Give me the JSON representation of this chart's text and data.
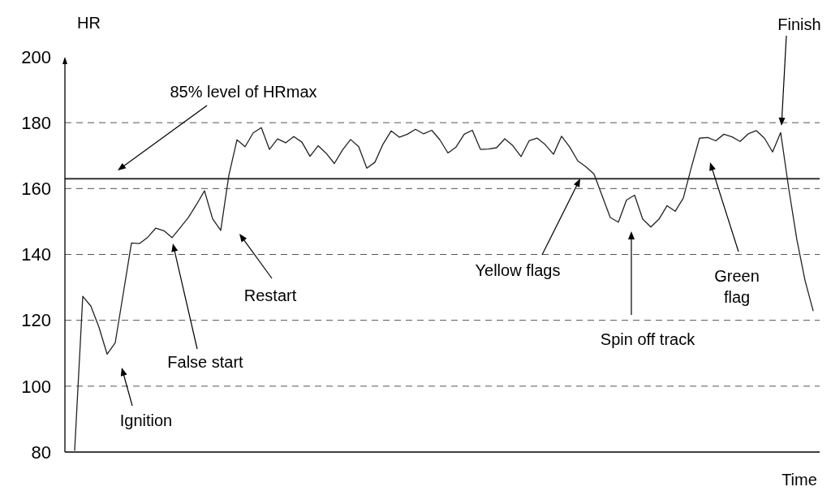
{
  "chart_data": {
    "type": "line",
    "ylabel": "HR",
    "xlabel": "Time",
    "categories": [
      null,
      null,
      null,
      null,
      null,
      null,
      null,
      null,
      null,
      null,
      null,
      null,
      null,
      null,
      null,
      null,
      null,
      null,
      null,
      null,
      null,
      null,
      null,
      null,
      null,
      null,
      null,
      null,
      null,
      null,
      null,
      null,
      null,
      null,
      null,
      null,
      null,
      null,
      null,
      null,
      null,
      null,
      null,
      null,
      null,
      null,
      null,
      null,
      null,
      null,
      null,
      null,
      null,
      null,
      null,
      null,
      null,
      null,
      null,
      null,
      null,
      null,
      null,
      null,
      null,
      null,
      null,
      null,
      null,
      null,
      null,
      null,
      null,
      null,
      null,
      null,
      null,
      null,
      null,
      null,
      null,
      null,
      null,
      null,
      null,
      null,
      null,
      null,
      null,
      null,
      null,
      null
    ],
    "ylim": [
      80,
      200
    ],
    "yticks": [
      80,
      100,
      120,
      140,
      160,
      180,
      200
    ],
    "tick_labels": "y",
    "grid": "y",
    "line_style": "solid",
    "marker": "none",
    "ref_lines": [
      {
        "axis": "y",
        "value": 163,
        "color": "#333333",
        "line_style": "solid"
      }
    ],
    "annotations": [
      "Ignition",
      "False start",
      "Restart",
      "Yellow flags",
      "Spin off track",
      "Green flag",
      "Finish",
      "85% level of HRmax"
    ],
    "series": [
      {
        "color": "#222222",
        "values": [
          80.5,
          127.3,
          124.3,
          117.9,
          109.7,
          113.2,
          128.3,
          143.5,
          143.3,
          145.2,
          148.0,
          147.2,
          145.1,
          148.1,
          151.2,
          155.1,
          159.3,
          150.8,
          147.3,
          164,
          174.8,
          172.7,
          176.9,
          178.5,
          171.9,
          175.1,
          173.9,
          175.8,
          174.1,
          169.8,
          173,
          170.7,
          167.6,
          171.7,
          174.9,
          172.7,
          166.2,
          168,
          173.5,
          177.5,
          175.6,
          176.5,
          178,
          176.6,
          177.7,
          174.8,
          170.8,
          172.6,
          176.5,
          177.7,
          171.9,
          172.0,
          172.4,
          175.1,
          173,
          169.7,
          174.5,
          175.3,
          173.3,
          170.4,
          175.9,
          172.6,
          168.4,
          166.6,
          164.4,
          157.8,
          151.2,
          149.8,
          156.5,
          158,
          150.7,
          148.3,
          150.7,
          154.8,
          153.1,
          157.1,
          166.5,
          175.3,
          175.5,
          174.5,
          176.5,
          175.7,
          174.3,
          176.6,
          177.6,
          175.3,
          171.1,
          177,
          159.9,
          144.4,
          132.1,
          122.9
        ]
      }
    ]
  }
}
